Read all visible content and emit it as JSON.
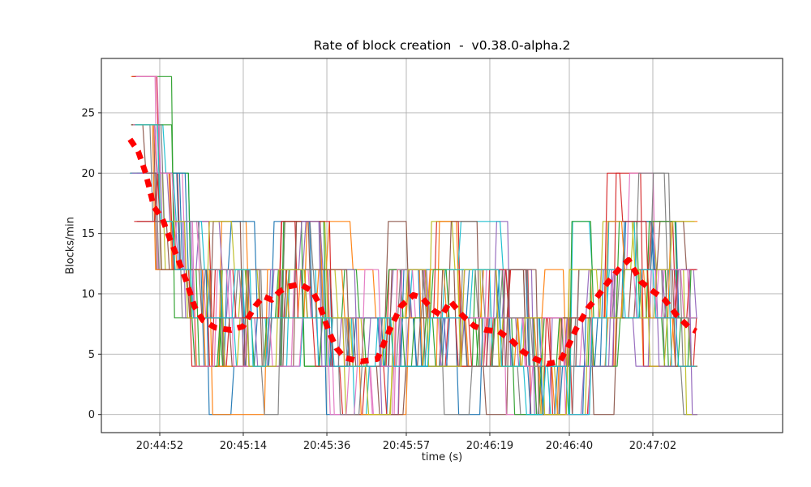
{
  "figure": {
    "title": "Rate of block creation  -  v0.38.0-alpha.2"
  },
  "chart_data": {
    "type": "line",
    "title": "Rate of block creation  -  v0.38.0-alpha.2",
    "xlabel": "time (s)",
    "ylabel": "Blocks/min",
    "ylim": [
      -1.5,
      29.5
    ],
    "yticks": [
      0,
      5,
      10,
      15,
      20,
      25
    ],
    "xticks": [
      {
        "f": 0.0857,
        "label": "20:44:52"
      },
      {
        "f": 0.2083,
        "label": "20:45:14"
      },
      {
        "f": 0.331,
        "label": "20:45:36"
      },
      {
        "f": 0.4476,
        "label": "20:45:57"
      },
      {
        "f": 0.5702,
        "label": "20:46:19"
      },
      {
        "f": 0.6869,
        "label": "20:46:40"
      },
      {
        "f": 0.8095,
        "label": "20:47:02"
      }
    ],
    "grid": true,
    "grid_color": "#b0b0b0",
    "axis_color": "#262626",
    "plot_bg": "#ffffff",
    "average_series": {
      "name": "moving-average",
      "color": "#ff0000",
      "style": "thick-dashed",
      "points": [
        [
          0.042,
          22.8
        ],
        [
          0.054,
          21.8
        ],
        [
          0.065,
          20.0
        ],
        [
          0.077,
          17.2
        ],
        [
          0.089,
          16.3
        ],
        [
          0.101,
          14.5
        ],
        [
          0.113,
          12.8
        ],
        [
          0.125,
          11.0
        ],
        [
          0.137,
          8.9
        ],
        [
          0.149,
          7.8
        ],
        [
          0.167,
          7.2
        ],
        [
          0.19,
          7.0
        ],
        [
          0.208,
          7.3
        ],
        [
          0.226,
          9.0
        ],
        [
          0.238,
          9.8
        ],
        [
          0.25,
          9.5
        ],
        [
          0.262,
          10.2
        ],
        [
          0.274,
          10.6
        ],
        [
          0.292,
          10.8
        ],
        [
          0.31,
          10.2
        ],
        [
          0.321,
          9.0
        ],
        [
          0.333,
          7.0
        ],
        [
          0.345,
          5.5
        ],
        [
          0.357,
          4.7
        ],
        [
          0.381,
          4.4
        ],
        [
          0.405,
          4.6
        ],
        [
          0.423,
          7.0
        ],
        [
          0.44,
          9.0
        ],
        [
          0.458,
          9.9
        ],
        [
          0.47,
          9.7
        ],
        [
          0.488,
          8.6
        ],
        [
          0.5,
          8.2
        ],
        [
          0.512,
          9.4
        ],
        [
          0.53,
          8.2
        ],
        [
          0.548,
          7.3
        ],
        [
          0.565,
          7.0
        ],
        [
          0.583,
          6.9
        ],
        [
          0.601,
          6.2
        ],
        [
          0.619,
          5.2
        ],
        [
          0.637,
          4.6
        ],
        [
          0.655,
          4.2
        ],
        [
          0.673,
          4.4
        ],
        [
          0.684,
          5.5
        ],
        [
          0.696,
          7.0
        ],
        [
          0.714,
          8.8
        ],
        [
          0.726,
          9.6
        ],
        [
          0.744,
          11.0
        ],
        [
          0.762,
          12.2
        ],
        [
          0.774,
          12.8
        ],
        [
          0.792,
          11.0
        ],
        [
          0.81,
          10.2
        ],
        [
          0.827,
          9.5
        ],
        [
          0.845,
          8.2
        ],
        [
          0.863,
          7.2
        ],
        [
          0.873,
          6.9
        ]
      ]
    },
    "noise_series": {
      "description": "Approximately 30 overlapping per-node step series; values quantized to multiples of 4 (0-28), oscillating around the red moving-average curve",
      "count": 30,
      "seed": 7,
      "start": 0.042,
      "end": 0.875,
      "quantum": 4,
      "value_min": 0,
      "value_max": 28,
      "initial_spike_value": 28,
      "segment_min": 0.016,
      "segment_rand": 0.024,
      "transition_width": 0.0045,
      "palette": [
        "#1f77b4",
        "#ff7f0e",
        "#2ca02c",
        "#d62728",
        "#9467bd",
        "#8c564b",
        "#e377c2",
        "#7f7f7f",
        "#bcbd22",
        "#17becf"
      ]
    }
  }
}
